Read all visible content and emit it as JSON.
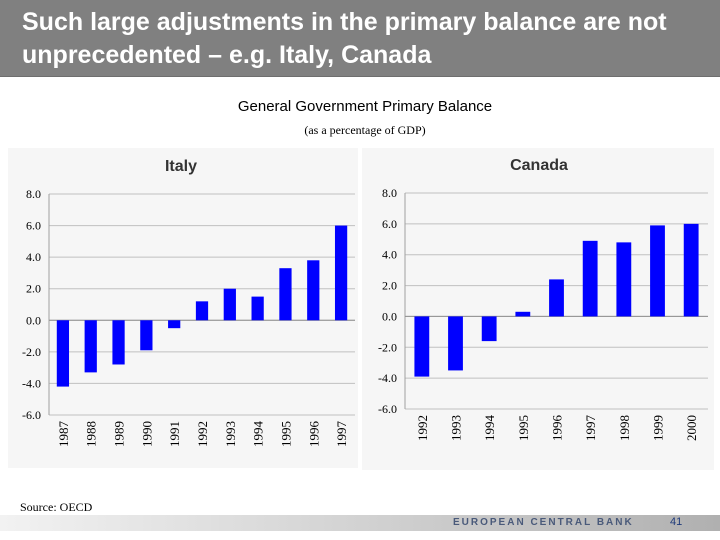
{
  "slide": {
    "title": "Such large adjustments in the primary balance are not unprecedented – e.g. Italy, Canada",
    "chart_title": "General Government Primary Balance",
    "chart_subtitle": "(as a percentage of GDP)",
    "source": "Source: OECD",
    "footer_org": "EUROPEAN CENTRAL BANK",
    "page_number": "41"
  },
  "colors": {
    "bar": "#0000ff",
    "grid": "#c0c0c0",
    "header_bg": "#808080"
  },
  "chart_data": [
    {
      "type": "bar",
      "title": "Italy",
      "categories": [
        "1987",
        "1988",
        "1989",
        "1990",
        "1991",
        "1992",
        "1993",
        "1994",
        "1995",
        "1996",
        "1997"
      ],
      "values": [
        -4.2,
        -3.3,
        -2.8,
        -1.9,
        -0.5,
        1.2,
        2.0,
        1.5,
        3.3,
        3.8,
        6.0
      ],
      "ylim": [
        -6.0,
        8.0
      ],
      "yticks": [
        "8.0",
        "6.0",
        "4.0",
        "2.0",
        "0.0",
        "-2.0",
        "-4.0",
        "-6.0"
      ],
      "xlabel": "",
      "ylabel": "",
      "grid": true
    },
    {
      "type": "bar",
      "title": "Canada",
      "categories": [
        "1992",
        "1993",
        "1994",
        "1995",
        "1996",
        "1997",
        "1998",
        "1999",
        "2000"
      ],
      "values": [
        -3.9,
        -3.5,
        -1.6,
        0.3,
        2.4,
        4.9,
        4.8,
        5.9,
        6.0
      ],
      "ylim": [
        -6.0,
        8.0
      ],
      "yticks": [
        "8.0",
        "6.0",
        "4.0",
        "2.0",
        "0.0",
        "-2.0",
        "-4.0",
        "-6.0"
      ],
      "xlabel": "",
      "ylabel": "",
      "grid": true
    }
  ]
}
